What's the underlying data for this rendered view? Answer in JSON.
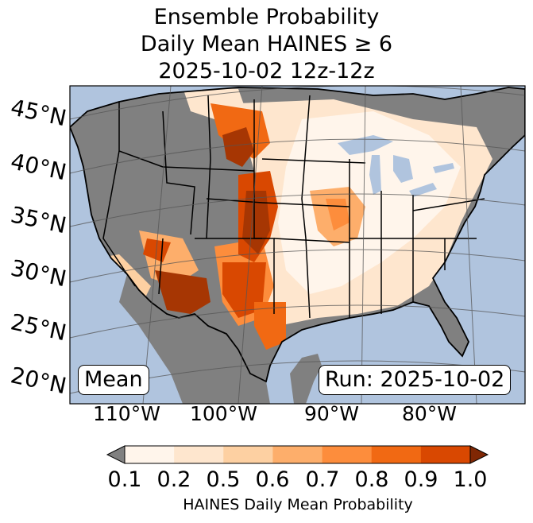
{
  "title": {
    "line1": "Ensemble Probability",
    "line2": "Daily Mean HAINES ≥ 6",
    "line3": "2025-10-02 12z-12z"
  },
  "lat_labels": [
    "45°N",
    "40°N",
    "35°N",
    "30°N",
    "25°N",
    "20°N"
  ],
  "lon_labels": [
    "110°W",
    "100°W",
    "90°W",
    "80°W"
  ],
  "mean_label": "Mean",
  "run_label": "Run: 2025-10-02",
  "colorbar": {
    "label": "HAINES Daily Mean Probability",
    "ticks": [
      "0.1",
      "0.2",
      "0.5",
      "0.6",
      "0.7",
      "0.8",
      "0.9",
      "1.0"
    ],
    "colors": [
      "#fff5eb",
      "#fee6ce",
      "#fdd0a2",
      "#fdae6b",
      "#fd8d3c",
      "#f16913",
      "#d94801",
      "#a63603"
    ],
    "under_color": "#808080",
    "over_color": "#7f2704"
  },
  "colors": {
    "ocean": "#b0c4de",
    "land_no_data": "#808080"
  }
}
